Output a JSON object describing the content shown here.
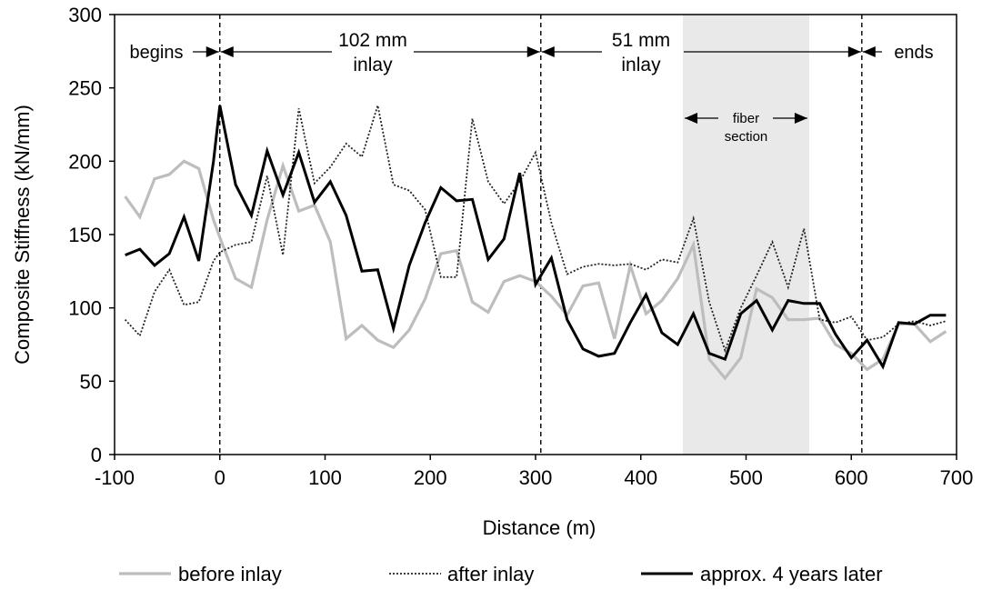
{
  "chart_data": {
    "type": "line",
    "title": "",
    "xlabel": "Distance (m)",
    "ylabel": "Composite Stiffness (kN/mm)",
    "xlim": [
      -100,
      700
    ],
    "ylim": [
      0,
      300
    ],
    "xticks": [
      -100,
      0,
      100,
      200,
      300,
      400,
      500,
      600,
      700
    ],
    "yticks": [
      0,
      50,
      100,
      150,
      200,
      250,
      300
    ],
    "grid": false,
    "legend_position": "bottom",
    "x": [
      -90,
      -76,
      -62,
      -48,
      -34,
      -20,
      -6,
      0,
      15,
      30,
      45,
      60,
      75,
      90,
      105,
      120,
      135,
      150,
      165,
      180,
      195,
      210,
      225,
      240,
      255,
      270,
      285,
      300,
      315,
      330,
      345,
      360,
      375,
      390,
      405,
      420,
      435,
      450,
      465,
      480,
      495,
      510,
      525,
      540,
      555,
      570,
      585,
      600,
      615,
      630,
      645,
      660,
      675,
      690
    ],
    "series": [
      {
        "name": "before inlay",
        "color": "#bdbdbd",
        "dash": "solid",
        "values": [
          176,
          162,
          188,
          191,
          200,
          195,
          160,
          148,
          120,
          114,
          160,
          197,
          166,
          170,
          145,
          79,
          88,
          78,
          73,
          85,
          106,
          137,
          139,
          104,
          97,
          118,
          122,
          118,
          108,
          95,
          115,
          117,
          79,
          129,
          96,
          105,
          120,
          143,
          65,
          52,
          66,
          113,
          107,
          92,
          92,
          93,
          75,
          69,
          58,
          65,
          89,
          89,
          77,
          84
        ]
      },
      {
        "name": "after inlay",
        "color": "#222222",
        "dash": "dotted",
        "values": [
          92,
          81,
          111,
          126,
          102,
          104,
          132,
          138,
          143,
          145,
          190,
          136,
          236,
          185,
          196,
          212,
          203,
          238,
          184,
          180,
          167,
          121,
          121,
          229,
          186,
          171,
          186,
          206,
          158,
          123,
          128,
          130,
          129,
          130,
          126,
          133,
          131,
          161,
          104,
          71,
          100,
          122,
          145,
          114,
          154,
          92,
          90,
          94,
          78,
          80,
          89,
          91,
          88,
          91
        ]
      },
      {
        "name": "approx. 4 years later",
        "color": "#000000",
        "dash": "solid",
        "values": [
          136,
          140,
          129,
          137,
          162,
          132,
          200,
          238,
          184,
          163,
          207,
          177,
          206,
          172,
          186,
          163,
          125,
          126,
          86,
          129,
          158,
          182,
          173,
          174,
          133,
          147,
          192,
          116,
          134,
          92,
          72,
          67,
          69,
          90,
          109,
          83,
          75,
          96,
          69,
          65,
          96,
          105,
          85,
          105,
          103,
          103,
          82,
          66,
          78,
          60,
          90,
          89,
          95,
          95
        ]
      }
    ],
    "annotations": {
      "begins": "begins",
      "inlay_102_line1": "102 mm",
      "inlay_102_line2": "inlay",
      "inlay_51_line1": "51 mm",
      "inlay_51_line2": "inlay",
      "ends": "ends",
      "fiber_line1": "fiber",
      "fiber_line2": "section"
    },
    "vertical_markers": [
      0,
      305,
      610
    ],
    "fiber_region": [
      440,
      560
    ]
  }
}
